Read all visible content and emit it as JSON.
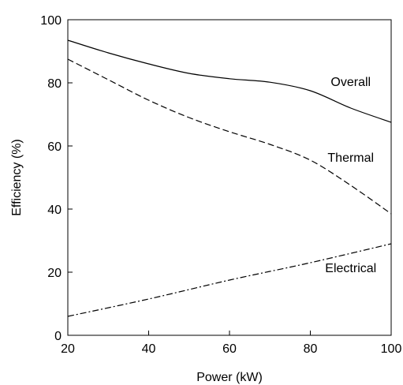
{
  "chart_data": {
    "type": "line",
    "xlabel": "Power (kW)",
    "ylabel": "Efficiency (%)",
    "xlim": [
      20,
      100
    ],
    "ylim": [
      0,
      100
    ],
    "x_ticks": [
      20,
      40,
      60,
      80,
      100
    ],
    "y_ticks": [
      0,
      20,
      40,
      60,
      80,
      100
    ],
    "grid": false,
    "series": [
      {
        "name": "Overall",
        "line_style": "solid",
        "x": [
          20,
          30,
          40,
          50,
          60,
          70,
          80,
          90,
          100
        ],
        "y": [
          93.5,
          89.5,
          86,
          83,
          81.3,
          80.2,
          77.5,
          72,
          67.5
        ]
      },
      {
        "name": "Thermal",
        "line_style": "dashed",
        "x": [
          20,
          30,
          40,
          50,
          60,
          70,
          80,
          90,
          100
        ],
        "y": [
          87.5,
          81,
          74.5,
          69,
          64.5,
          60.5,
          55.5,
          47.5,
          38.5
        ]
      },
      {
        "name": "Electrical",
        "line_style": "dash-dot",
        "x": [
          20,
          40,
          60,
          80,
          100
        ],
        "y": [
          6,
          11.5,
          17.5,
          23,
          29
        ]
      }
    ]
  },
  "colors": {
    "line": "#000000",
    "background": "#ffffff"
  }
}
